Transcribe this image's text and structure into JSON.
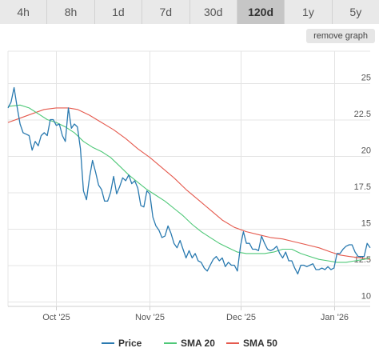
{
  "tabs": [
    {
      "label": "4h",
      "active": false
    },
    {
      "label": "8h",
      "active": false
    },
    {
      "label": "1d",
      "active": false
    },
    {
      "label": "7d",
      "active": false
    },
    {
      "label": "30d",
      "active": false
    },
    {
      "label": "120d",
      "active": true
    },
    {
      "label": "1y",
      "active": false
    },
    {
      "label": "5y",
      "active": false
    }
  ],
  "remove_graph_label": "remove graph",
  "colors": {
    "price": "#2a7ab0",
    "sma20": "#4fc878",
    "sma50": "#e55a4e",
    "grid": "#e4e4e4",
    "tab_active": "#c6c6c6"
  },
  "chart_data": {
    "type": "line",
    "x_axis": {
      "start": "2025-09-15",
      "end": "2026-01-13",
      "ticks": [
        {
          "label": "Oct '25",
          "date": "2025-10-01"
        },
        {
          "label": "Nov '25",
          "date": "2025-11-01"
        },
        {
          "label": "Dec '25",
          "date": "2025-12-01"
        },
        {
          "label": "Jan '26",
          "date": "2026-01-01"
        }
      ]
    },
    "y_axis": {
      "min": 10,
      "max": 25,
      "ticks": [
        {
          "label": "25",
          "value": 25
        },
        {
          "label": "22.5",
          "value": 22.5
        },
        {
          "label": "20",
          "value": 20
        },
        {
          "label": "17.5",
          "value": 17.5
        },
        {
          "label": "15",
          "value": 15
        },
        {
          "label": "12.5",
          "value": 12.5
        },
        {
          "label": "10",
          "value": 10
        }
      ]
    },
    "legend": {
      "position": "bottom"
    },
    "series": [
      {
        "name": "Price",
        "color": "#2a7ab0",
        "points": [
          [
            "2025-09-15",
            23.3
          ],
          [
            "2025-09-16",
            23.7
          ],
          [
            "2025-09-17",
            24.7
          ],
          [
            "2025-09-18",
            23.4
          ],
          [
            "2025-09-19",
            22.2
          ],
          [
            "2025-09-20",
            21.6
          ],
          [
            "2025-09-21",
            21.5
          ],
          [
            "2025-09-22",
            21.4
          ],
          [
            "2025-09-23",
            20.4
          ],
          [
            "2025-09-24",
            21.0
          ],
          [
            "2025-09-25",
            20.7
          ],
          [
            "2025-09-26",
            21.4
          ],
          [
            "2025-09-27",
            21.6
          ],
          [
            "2025-09-28",
            21.4
          ],
          [
            "2025-09-29",
            22.5
          ],
          [
            "2025-09-30",
            22.5
          ],
          [
            "2025-10-01",
            22.1
          ],
          [
            "2025-10-02",
            22.2
          ],
          [
            "2025-10-03",
            21.4
          ],
          [
            "2025-10-04",
            21.0
          ],
          [
            "2025-10-05",
            23.3
          ],
          [
            "2025-10-06",
            21.9
          ],
          [
            "2025-10-07",
            22.2
          ],
          [
            "2025-10-08",
            22.0
          ],
          [
            "2025-10-09",
            20.5
          ],
          [
            "2025-10-10",
            17.6
          ],
          [
            "2025-10-11",
            17.0
          ],
          [
            "2025-10-12",
            18.5
          ],
          [
            "2025-10-13",
            19.7
          ],
          [
            "2025-10-14",
            18.9
          ],
          [
            "2025-10-15",
            18.0
          ],
          [
            "2025-10-16",
            17.7
          ],
          [
            "2025-10-17",
            16.9
          ],
          [
            "2025-10-18",
            16.9
          ],
          [
            "2025-10-19",
            17.5
          ],
          [
            "2025-10-20",
            18.6
          ],
          [
            "2025-10-21",
            17.4
          ],
          [
            "2025-10-22",
            17.9
          ],
          [
            "2025-10-23",
            18.5
          ],
          [
            "2025-10-24",
            18.3
          ],
          [
            "2025-10-25",
            18.7
          ],
          [
            "2025-10-26",
            18.1
          ],
          [
            "2025-10-27",
            18.3
          ],
          [
            "2025-10-28",
            17.8
          ],
          [
            "2025-10-29",
            16.6
          ],
          [
            "2025-10-30",
            16.5
          ],
          [
            "2025-10-31",
            17.6
          ],
          [
            "2025-11-01",
            17.4
          ],
          [
            "2025-11-02",
            15.8
          ],
          [
            "2025-11-03",
            15.2
          ],
          [
            "2025-11-04",
            14.9
          ],
          [
            "2025-11-05",
            14.4
          ],
          [
            "2025-11-06",
            14.5
          ],
          [
            "2025-11-07",
            15.2
          ],
          [
            "2025-11-08",
            14.7
          ],
          [
            "2025-11-09",
            14.0
          ],
          [
            "2025-11-10",
            13.7
          ],
          [
            "2025-11-11",
            14.2
          ],
          [
            "2025-11-12",
            13.6
          ],
          [
            "2025-11-13",
            13.0
          ],
          [
            "2025-11-14",
            13.5
          ],
          [
            "2025-11-15",
            13.0
          ],
          [
            "2025-11-16",
            13.3
          ],
          [
            "2025-11-17",
            12.8
          ],
          [
            "2025-11-18",
            12.7
          ],
          [
            "2025-11-19",
            12.3
          ],
          [
            "2025-11-20",
            12.1
          ],
          [
            "2025-11-21",
            12.5
          ],
          [
            "2025-11-22",
            12.9
          ],
          [
            "2025-11-23",
            13.1
          ],
          [
            "2025-11-24",
            12.8
          ],
          [
            "2025-11-25",
            13.0
          ],
          [
            "2025-11-26",
            12.4
          ],
          [
            "2025-11-27",
            12.7
          ],
          [
            "2025-11-28",
            12.5
          ],
          [
            "2025-11-29",
            12.5
          ],
          [
            "2025-11-30",
            12.1
          ],
          [
            "2025-12-01",
            13.8
          ],
          [
            "2025-12-02",
            14.8
          ],
          [
            "2025-12-03",
            14.0
          ],
          [
            "2025-12-04",
            14.0
          ],
          [
            "2025-12-05",
            13.6
          ],
          [
            "2025-12-06",
            13.6
          ],
          [
            "2025-12-07",
            13.5
          ],
          [
            "2025-12-08",
            14.5
          ],
          [
            "2025-12-09",
            14.0
          ],
          [
            "2025-12-10",
            13.6
          ],
          [
            "2025-12-11",
            13.5
          ],
          [
            "2025-12-12",
            13.6
          ],
          [
            "2025-12-13",
            13.8
          ],
          [
            "2025-12-14",
            13.3
          ],
          [
            "2025-12-15",
            13.0
          ],
          [
            "2025-12-16",
            13.4
          ],
          [
            "2025-12-17",
            12.8
          ],
          [
            "2025-12-18",
            12.8
          ],
          [
            "2025-12-19",
            12.3
          ],
          [
            "2025-12-20",
            11.9
          ],
          [
            "2025-12-21",
            12.5
          ],
          [
            "2025-12-22",
            12.5
          ],
          [
            "2025-12-23",
            12.4
          ],
          [
            "2025-12-24",
            12.5
          ],
          [
            "2025-12-25",
            12.6
          ],
          [
            "2025-12-26",
            12.2
          ],
          [
            "2025-12-27",
            12.2
          ],
          [
            "2025-12-28",
            12.3
          ],
          [
            "2025-12-29",
            12.2
          ],
          [
            "2025-12-30",
            12.4
          ],
          [
            "2025-12-31",
            12.2
          ],
          [
            "2026-01-01",
            12.3
          ],
          [
            "2026-01-02",
            13.3
          ],
          [
            "2026-01-03",
            13.3
          ],
          [
            "2026-01-04",
            13.6
          ],
          [
            "2026-01-05",
            13.8
          ],
          [
            "2026-01-06",
            13.9
          ],
          [
            "2026-01-07",
            13.9
          ],
          [
            "2026-01-08",
            13.4
          ],
          [
            "2026-01-09",
            13.1
          ],
          [
            "2026-01-10",
            13.1
          ],
          [
            "2026-01-11",
            13.1
          ],
          [
            "2026-01-12",
            14.0
          ],
          [
            "2026-01-13",
            13.7
          ]
        ]
      },
      {
        "name": "SMA 20",
        "color": "#4fc878",
        "points": [
          [
            "2025-09-15",
            23.4
          ],
          [
            "2025-09-19",
            23.5
          ],
          [
            "2025-09-22",
            23.3
          ],
          [
            "2025-09-25",
            22.9
          ],
          [
            "2025-09-28",
            22.5
          ],
          [
            "2025-10-01",
            22.3
          ],
          [
            "2025-10-04",
            22.0
          ],
          [
            "2025-10-07",
            21.6
          ],
          [
            "2025-10-10",
            21.0
          ],
          [
            "2025-10-13",
            20.6
          ],
          [
            "2025-10-16",
            20.3
          ],
          [
            "2025-10-19",
            19.9
          ],
          [
            "2025-10-22",
            19.3
          ],
          [
            "2025-10-25",
            18.7
          ],
          [
            "2025-10-28",
            18.2
          ],
          [
            "2025-10-31",
            17.7
          ],
          [
            "2025-11-03",
            17.3
          ],
          [
            "2025-11-06",
            16.9
          ],
          [
            "2025-11-09",
            16.4
          ],
          [
            "2025-11-12",
            15.9
          ],
          [
            "2025-11-15",
            15.3
          ],
          [
            "2025-11-18",
            14.8
          ],
          [
            "2025-11-21",
            14.4
          ],
          [
            "2025-11-24",
            14.0
          ],
          [
            "2025-11-27",
            13.7
          ],
          [
            "2025-11-30",
            13.4
          ],
          [
            "2025-12-03",
            13.3
          ],
          [
            "2025-12-06",
            13.3
          ],
          [
            "2025-12-09",
            13.3
          ],
          [
            "2025-12-12",
            13.4
          ],
          [
            "2025-12-15",
            13.6
          ],
          [
            "2025-12-18",
            13.6
          ],
          [
            "2025-12-21",
            13.3
          ],
          [
            "2025-12-24",
            13.1
          ],
          [
            "2025-12-27",
            12.9
          ],
          [
            "2025-12-30",
            12.8
          ],
          [
            "2026-01-02",
            12.7
          ],
          [
            "2026-01-05",
            12.7
          ],
          [
            "2026-01-08",
            12.8
          ],
          [
            "2026-01-11",
            12.9
          ],
          [
            "2026-01-13",
            13.0
          ]
        ]
      },
      {
        "name": "SMA 50",
        "color": "#e55a4e",
        "points": [
          [
            "2025-09-15",
            22.3
          ],
          [
            "2025-09-19",
            22.6
          ],
          [
            "2025-09-23",
            22.9
          ],
          [
            "2025-09-27",
            23.2
          ],
          [
            "2025-10-01",
            23.3
          ],
          [
            "2025-10-05",
            23.3
          ],
          [
            "2025-10-08",
            23.2
          ],
          [
            "2025-10-12",
            22.8
          ],
          [
            "2025-10-16",
            22.3
          ],
          [
            "2025-10-20",
            21.8
          ],
          [
            "2025-10-24",
            21.2
          ],
          [
            "2025-10-28",
            20.5
          ],
          [
            "2025-11-01",
            19.9
          ],
          [
            "2025-11-05",
            19.2
          ],
          [
            "2025-11-09",
            18.5
          ],
          [
            "2025-11-13",
            17.7
          ],
          [
            "2025-11-17",
            17.0
          ],
          [
            "2025-11-21",
            16.3
          ],
          [
            "2025-11-25",
            15.6
          ],
          [
            "2025-11-29",
            15.1
          ],
          [
            "2025-12-03",
            14.8
          ],
          [
            "2025-12-07",
            14.6
          ],
          [
            "2025-12-11",
            14.4
          ],
          [
            "2025-12-15",
            14.3
          ],
          [
            "2025-12-19",
            14.1
          ],
          [
            "2025-12-23",
            13.9
          ],
          [
            "2025-12-27",
            13.7
          ],
          [
            "2025-12-31",
            13.4
          ],
          [
            "2026-01-03",
            13.2
          ],
          [
            "2026-01-06",
            13.1
          ],
          [
            "2026-01-10",
            13.0
          ],
          [
            "2026-01-13",
            12.9
          ]
        ]
      }
    ]
  }
}
